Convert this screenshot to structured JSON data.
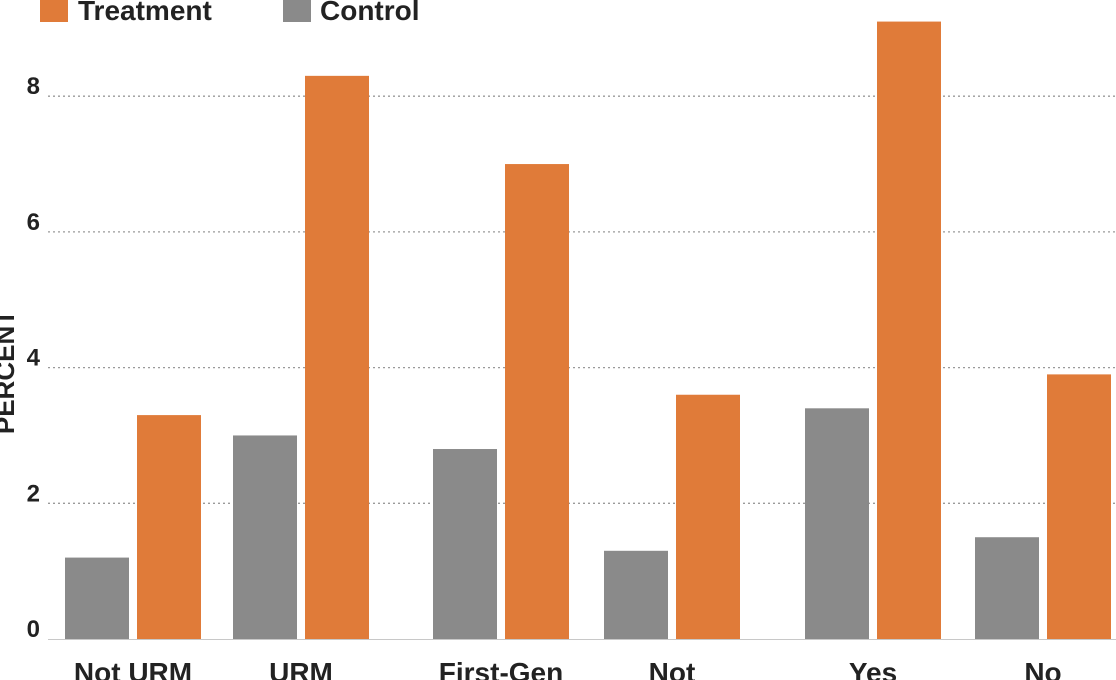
{
  "chart_data": {
    "type": "bar",
    "title": "",
    "xlabel": "",
    "ylabel": "PERCENT",
    "ylim": [
      0,
      9.3
    ],
    "yticks": [
      0,
      2,
      4,
      6,
      8
    ],
    "grid": true,
    "legend_position": "top-left",
    "colors": {
      "Treatment": "#E07B39",
      "Control": "#8A8A8A",
      "grid": "#9a9a9a"
    },
    "categories": [
      "Not URM",
      "URM",
      "First-Gen",
      "Not",
      "Yes",
      "No"
    ],
    "series": [
      {
        "name": "Treatment",
        "values": [
          3.3,
          8.3,
          7.0,
          3.6,
          9.1,
          3.9
        ]
      },
      {
        "name": "Control",
        "values": [
          1.2,
          3.0,
          2.8,
          1.3,
          3.4,
          1.5
        ]
      }
    ]
  }
}
